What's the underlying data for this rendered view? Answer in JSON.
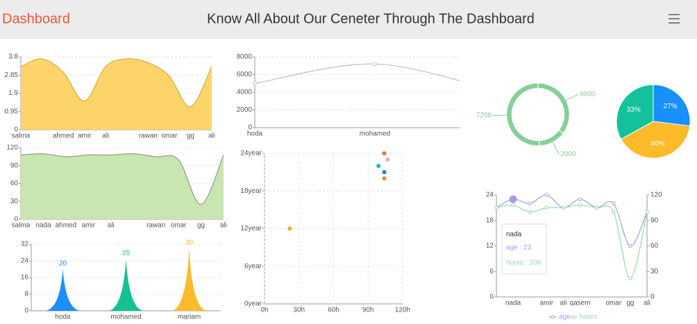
{
  "header": {
    "brand": "Dashboard",
    "title": "Know All About Our Ceneter Through The Dashboard"
  },
  "chart_data": [
    {
      "type": "area",
      "categories": [
        "salma",
        null,
        "ahmed",
        "amir",
        "ali",
        null,
        "rawan",
        "omar",
        "gg",
        "ali"
      ],
      "values": [
        3.3,
        3.7,
        3.0,
        1.5,
        3.3,
        3.7,
        3.5,
        2.8,
        1.2,
        3.3
      ],
      "color": "#fdd46a",
      "line_color": "#c9a23a",
      "ylim": [
        0,
        3.8
      ],
      "yticks": [
        0,
        0.95,
        1.9,
        2.85,
        3.8
      ],
      "grid": true
    },
    {
      "type": "area",
      "categories": [
        "salma",
        "nada",
        "ahmed",
        "amir",
        "ali",
        null,
        "rawan",
        "omar",
        "gg",
        "ali"
      ],
      "values": [
        108,
        110,
        105,
        108,
        108,
        110,
        105,
        100,
        25,
        108
      ],
      "color": "#c7e6b0",
      "line_color": "#888888",
      "ylim": [
        0,
        120
      ],
      "yticks": [
        0,
        30,
        60,
        90,
        120
      ],
      "grid": true
    },
    {
      "type": "pictorial",
      "categories": [
        "hoda",
        "mohamed",
        "mariam"
      ],
      "values": [
        20,
        25,
        30
      ],
      "colors": [
        "#1890ff",
        "#13c28f",
        "#fbbb2b"
      ],
      "ylim": [
        0,
        32
      ],
      "yticks": [
        0,
        8,
        16,
        24,
        32
      ],
      "grid": true
    },
    {
      "type": "line",
      "categories": [
        "hoda",
        "mohamed",
        null
      ],
      "values": [
        5000,
        7200,
        4200
      ],
      "color": "#c6b6e6",
      "ylim": [
        0,
        8000
      ],
      "yticks": [
        0,
        2000,
        4000,
        6000,
        8000
      ],
      "grid": true
    },
    {
      "type": "scatter",
      "x": [
        22,
        99,
        104,
        107,
        104,
        104
      ],
      "values": [
        12,
        22,
        24,
        23,
        21,
        20
      ],
      "colors": [
        "#f7a52b",
        "#19c3a0",
        "#f26c3a",
        "#f4a7b5",
        "#1f7fe0",
        "#f0843a"
      ],
      "xlim": [
        0,
        120
      ],
      "xticks": [
        {
          "value": 0,
          "label": "0h"
        },
        {
          "value": 30,
          "label": "30h"
        },
        {
          "value": 60,
          "label": "60h"
        },
        {
          "value": 90,
          "label": "90h"
        },
        {
          "value": 120,
          "label": "120h"
        }
      ],
      "ylim": [
        0,
        24
      ],
      "yticks": [
        {
          "value": 0,
          "label": "0year"
        },
        {
          "value": 6,
          "label": "6year"
        },
        {
          "value": 12,
          "label": "12year"
        },
        {
          "value": 18,
          "label": "18year"
        },
        {
          "value": 24,
          "label": "24year"
        }
      ],
      "grid": true
    },
    {
      "type": "donut",
      "values": [
        5000,
        2000,
        7200
      ],
      "color": "#86cf9a"
    },
    {
      "type": "pie",
      "values": [
        27,
        40,
        33
      ],
      "value_labels": [
        "27%",
        "40%",
        "33%"
      ],
      "colors": [
        "#1890ff",
        "#fbbb2b",
        "#13c29a"
      ]
    },
    {
      "type": "dual-line",
      "categories": [
        null,
        "nada",
        null,
        "amir",
        "ali",
        "qasem",
        null,
        "omar",
        "gg",
        "ali"
      ],
      "series": [
        {
          "name": "age",
          "color": "#a79be0",
          "axis": "y",
          "values": [
            21,
            23,
            22,
            24,
            21,
            23,
            21,
            22,
            12,
            20
          ]
        },
        {
          "name": "hours",
          "color": "#93d9a8",
          "axis": "y2",
          "values": [
            105,
            108,
            100,
            105,
            105,
            108,
            105,
            100,
            22,
            100
          ]
        }
      ],
      "ylim": [
        0,
        24
      ],
      "yticks": [
        0,
        6,
        12,
        18,
        24
      ],
      "y2lim": [
        0,
        120
      ],
      "y2ticks": [
        0,
        30,
        60,
        90,
        120
      ],
      "tooltip": {
        "title": "nada",
        "lines": [
          "age : 23",
          "hours : 108"
        ]
      }
    }
  ]
}
